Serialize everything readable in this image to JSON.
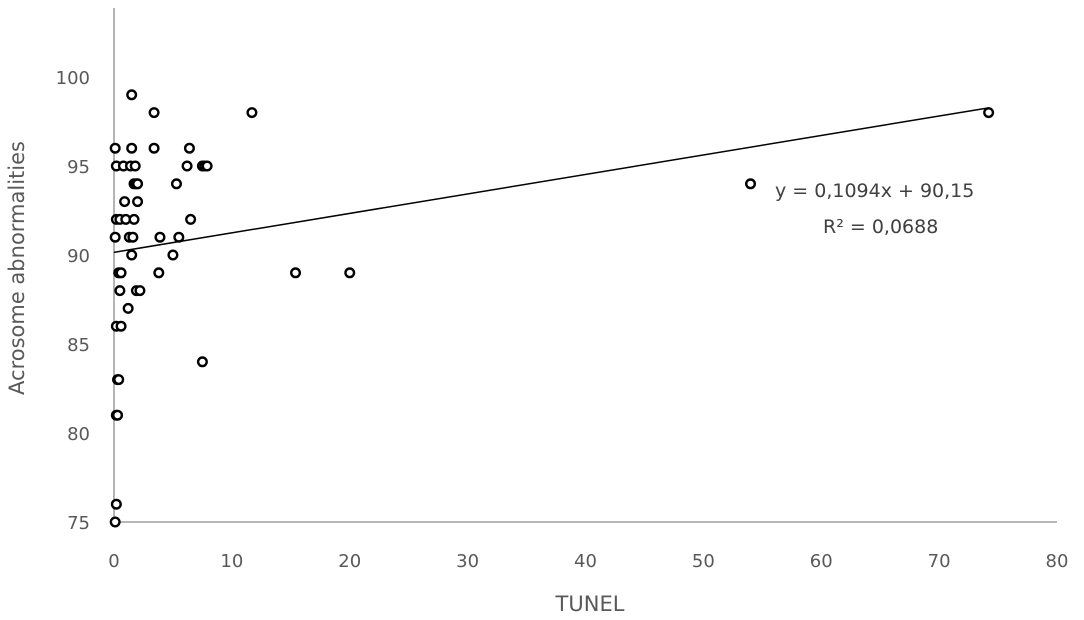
{
  "chart_data": {
    "type": "scatter",
    "title": "",
    "xlabel": "TUNEL",
    "ylabel": "Acrosome abnormalities",
    "xlim": [
      0,
      80
    ],
    "ylim": [
      75,
      104
    ],
    "x_ticks": [
      0,
      10,
      20,
      30,
      40,
      50,
      60,
      70,
      80
    ],
    "y_ticks": [
      75,
      80,
      85,
      90,
      95,
      100
    ],
    "grid": false,
    "legend": "none",
    "marker_color": "#000000",
    "points": [
      [
        0.1,
        75
      ],
      [
        0.2,
        76
      ],
      [
        0.2,
        81
      ],
      [
        0.3,
        81
      ],
      [
        0.3,
        83
      ],
      [
        0.4,
        83
      ],
      [
        0.2,
        86
      ],
      [
        0.6,
        86
      ],
      [
        0.5,
        88
      ],
      [
        0.4,
        89
      ],
      [
        0.6,
        89
      ],
      [
        0.1,
        91
      ],
      [
        0.2,
        92
      ],
      [
        0.5,
        92
      ],
      [
        0.2,
        95
      ],
      [
        0.1,
        96
      ],
      [
        0.8,
        95
      ],
      [
        0.9,
        93
      ],
      [
        1.0,
        92
      ],
      [
        1.2,
        87
      ],
      [
        1.3,
        91
      ],
      [
        1.5,
        90
      ],
      [
        1.4,
        95
      ],
      [
        1.5,
        96
      ],
      [
        1.5,
        99
      ],
      [
        1.6,
        91
      ],
      [
        1.7,
        92
      ],
      [
        1.7,
        94
      ],
      [
        1.8,
        95
      ],
      [
        1.9,
        94
      ],
      [
        2.0,
        93
      ],
      [
        2.0,
        94
      ],
      [
        1.9,
        88
      ],
      [
        2.2,
        88
      ],
      [
        3.4,
        96
      ],
      [
        3.4,
        98
      ],
      [
        3.8,
        89
      ],
      [
        3.9,
        91
      ],
      [
        5.0,
        90
      ],
      [
        5.3,
        94
      ],
      [
        5.5,
        91
      ],
      [
        6.2,
        95
      ],
      [
        6.4,
        96
      ],
      [
        6.5,
        92
      ],
      [
        7.5,
        84
      ],
      [
        7.5,
        95
      ],
      [
        7.7,
        95
      ],
      [
        7.9,
        95
      ],
      [
        11.7,
        98
      ],
      [
        15.4,
        89
      ],
      [
        20.0,
        89
      ],
      [
        54.0,
        94
      ],
      [
        74.2,
        98
      ]
    ],
    "trendline": {
      "type": "linear",
      "slope": 0.1094,
      "intercept": 90.15,
      "x_range": [
        0,
        74.2
      ],
      "equation_label": "y = 0,1094x + 90,15",
      "r2_label": "R² = 0,0688"
    }
  }
}
